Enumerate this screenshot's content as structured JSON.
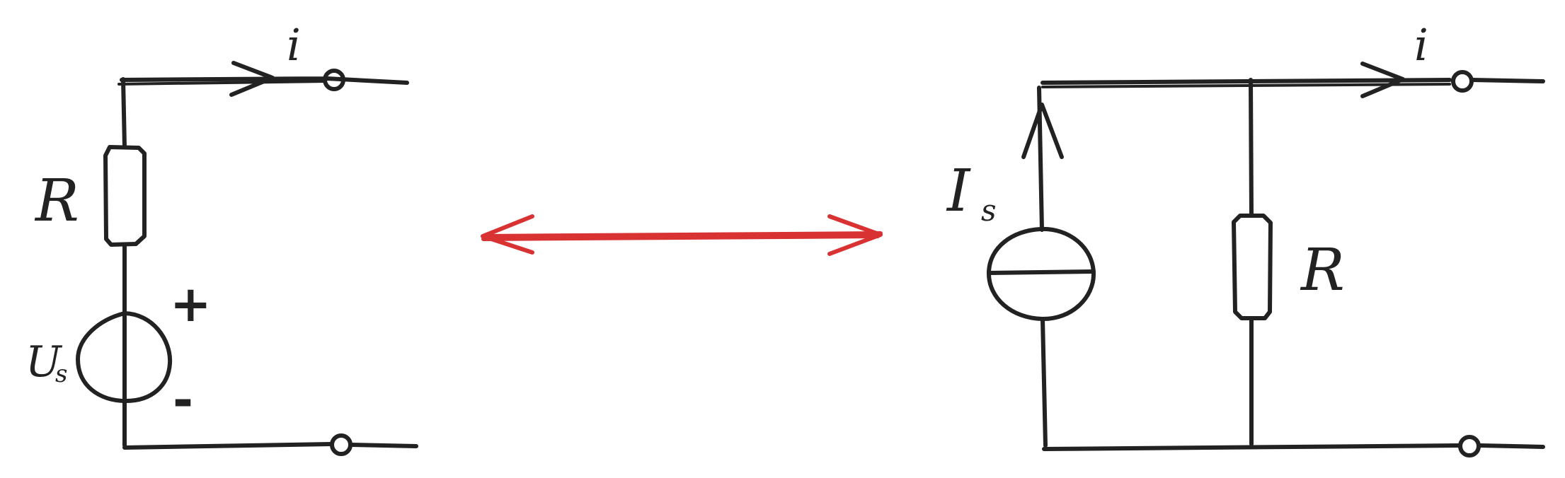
{
  "left_circuit": {
    "resistor_label": "R",
    "source_label_main": "U",
    "source_label_sub": "s",
    "plus_sign": "+",
    "minus_sign": "-",
    "current_label": "i"
  },
  "right_circuit": {
    "source_label_main": "I",
    "source_label_sub": "s",
    "resistor_label": "R",
    "current_label": "i"
  },
  "colors": {
    "ink": "#222222",
    "equivalence_arrow": "#d93232",
    "background": "#ffffff"
  }
}
